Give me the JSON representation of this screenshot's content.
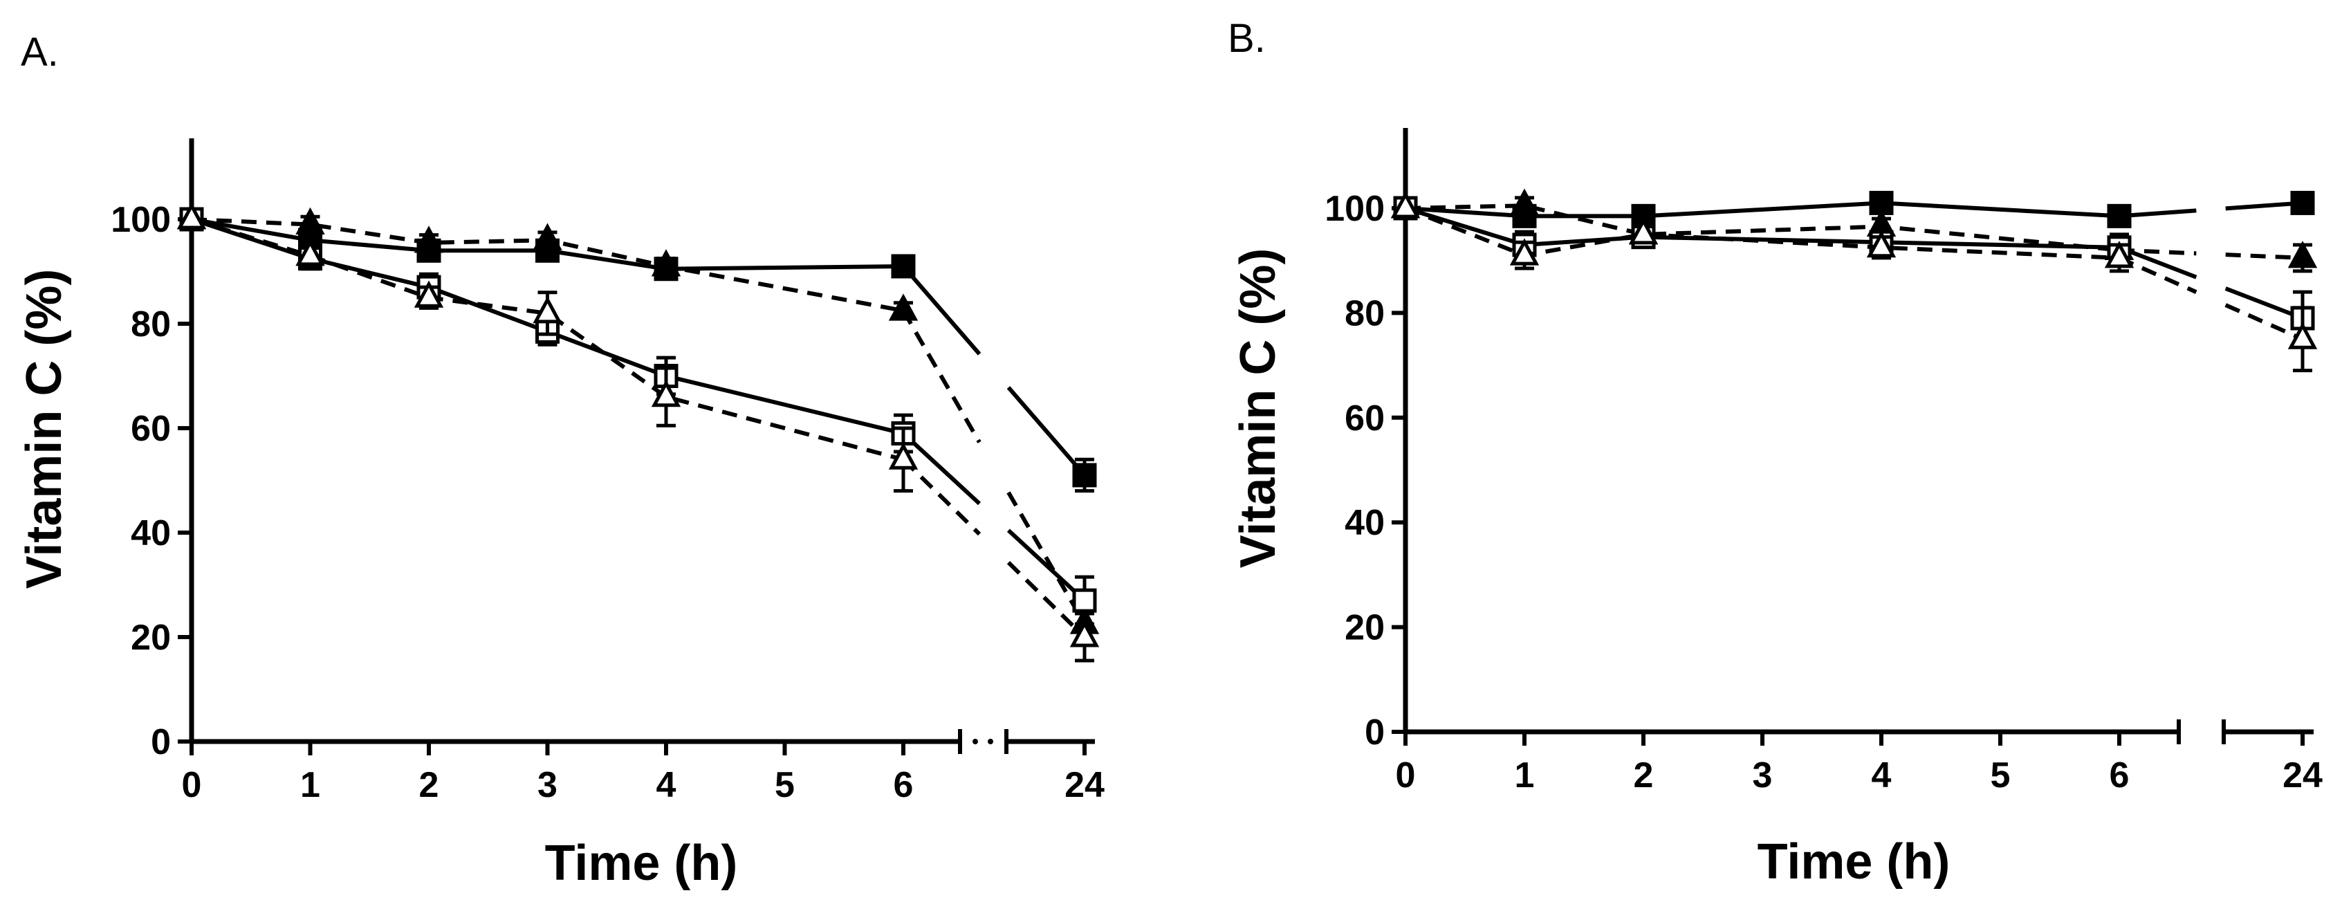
{
  "chart_data": [
    {
      "type": "line",
      "panel": "A.",
      "xlabel": "Time (h)",
      "ylabel": "Vitamin C (%)",
      "x_ticks": [
        "0",
        "1",
        "2",
        "3",
        "4",
        "5",
        "6",
        "24"
      ],
      "y_ticks": [
        "0",
        "20",
        "40",
        "60",
        "80",
        "100"
      ],
      "ylim": [
        0,
        115
      ],
      "x_break": "between 6 and 24",
      "series": [
        {
          "name": "filled-square",
          "marker": "square",
          "filled": true,
          "line": "solid",
          "x": [
            0,
            1,
            2,
            3,
            4,
            6,
            24
          ],
          "y": [
            100,
            96,
            94,
            94,
            90.5,
            91,
            51
          ],
          "err": [
            0,
            1.5,
            1.5,
            1.5,
            1.5,
            1.5,
            3
          ]
        },
        {
          "name": "filled-triangle",
          "marker": "triangle",
          "filled": true,
          "line": "dashed",
          "x": [
            0,
            1,
            2,
            3,
            4,
            6,
            24
          ],
          "y": [
            100,
            99,
            95.5,
            96,
            91,
            82.5,
            22.5
          ],
          "err": [
            0,
            1.5,
            1.5,
            1.5,
            1.5,
            1.5,
            3
          ]
        },
        {
          "name": "open-square",
          "marker": "square",
          "filled": false,
          "line": "solid",
          "x": [
            0,
            1,
            2,
            3,
            4,
            6,
            24
          ],
          "y": [
            100,
            92.5,
            87,
            78.5,
            70,
            59,
            27
          ],
          "err": [
            0,
            2,
            2.5,
            2.5,
            3.5,
            3.5,
            4.5
          ]
        },
        {
          "name": "open-triangle",
          "marker": "triangle",
          "filled": false,
          "line": "dashed",
          "x": [
            0,
            1,
            2,
            3,
            4,
            6,
            24
          ],
          "y": [
            100,
            93,
            85,
            82,
            66,
            54,
            20
          ],
          "err": [
            0,
            2,
            2,
            4,
            5.5,
            6,
            4.5
          ]
        }
      ]
    },
    {
      "type": "line",
      "panel": "B.",
      "xlabel": "Time (h)",
      "ylabel": "Vitamin C (%)",
      "x_ticks": [
        "0",
        "1",
        "2",
        "3",
        "4",
        "5",
        "6",
        "24"
      ],
      "y_ticks": [
        "0",
        "20",
        "40",
        "60",
        "80",
        "100"
      ],
      "ylim": [
        0,
        115
      ],
      "x_break": "between 6 and 24",
      "series": [
        {
          "name": "filled-square",
          "marker": "square",
          "filled": true,
          "line": "solid",
          "x": [
            0,
            1,
            2,
            4,
            6,
            24
          ],
          "y": [
            100,
            98.5,
            98.5,
            101,
            98.5,
            101
          ],
          "err": [
            0,
            1,
            1,
            1,
            1,
            1
          ]
        },
        {
          "name": "filled-triangle",
          "marker": "triangle",
          "filled": true,
          "line": "dashed",
          "x": [
            0,
            1,
            2,
            4,
            6,
            24
          ],
          "y": [
            100,
            100.5,
            95,
            96.5,
            92,
            90.5
          ],
          "err": [
            0,
            1.5,
            1.5,
            1.5,
            1.5,
            2.5
          ]
        },
        {
          "name": "open-square",
          "marker": "square",
          "filled": false,
          "line": "solid",
          "x": [
            0,
            1,
            2,
            4,
            6,
            24
          ],
          "y": [
            100,
            93,
            94.5,
            93.5,
            92.5,
            79
          ],
          "err": [
            0,
            2.5,
            1.5,
            2,
            2.5,
            5
          ]
        },
        {
          "name": "open-triangle",
          "marker": "triangle",
          "filled": false,
          "line": "dashed",
          "x": [
            0,
            1,
            2,
            4,
            6,
            24
          ],
          "y": [
            100,
            91,
            95,
            92.5,
            90.5,
            75
          ],
          "err": [
            0,
            2.5,
            1.5,
            2,
            2.5,
            6
          ]
        }
      ]
    }
  ]
}
